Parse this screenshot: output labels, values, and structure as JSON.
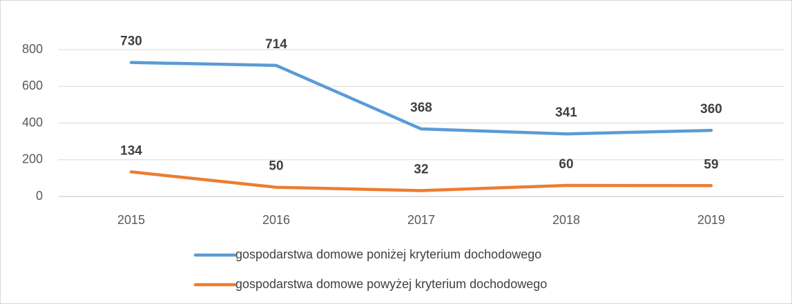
{
  "chart_data": {
    "type": "line",
    "categories": [
      "2015",
      "2016",
      "2017",
      "2018",
      "2019"
    ],
    "series": [
      {
        "name": "gospodarstwa domowe poniżej kryterium dochodowego",
        "color": "#5b9bd5",
        "values": [
          730,
          714,
          368,
          341,
          360
        ]
      },
      {
        "name": "gospodarstwa domowe powyżej kryterium dochodowego",
        "color": "#ed7d31",
        "values": [
          134,
          50,
          32,
          60,
          59
        ]
      }
    ],
    "ylim": [
      0,
      800
    ],
    "yticks": [
      0,
      200,
      400,
      600,
      800
    ],
    "grid": true,
    "legend": "bottom"
  }
}
